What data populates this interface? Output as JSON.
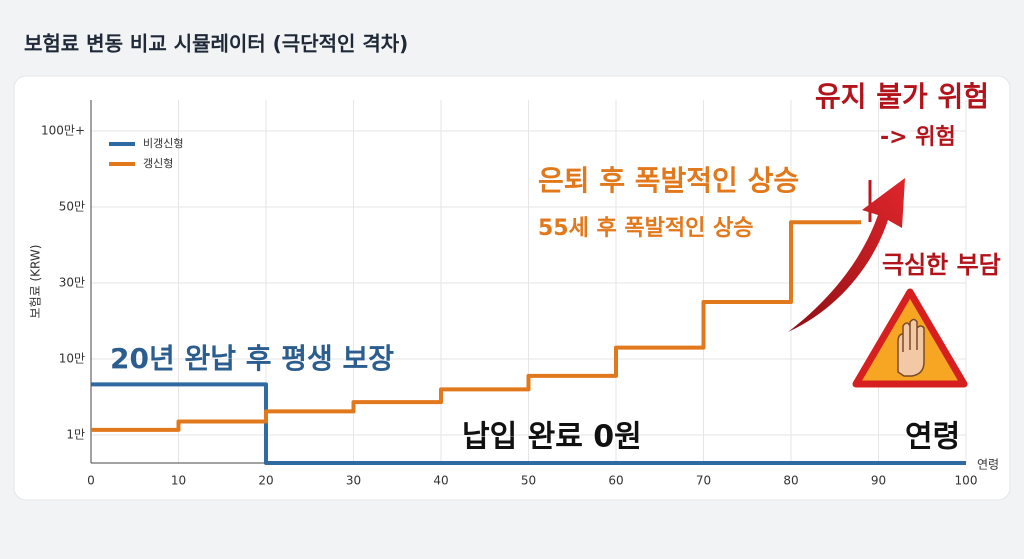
{
  "chart_data": {
    "type": "step-line",
    "title": "보험료 변동 비교 시뮬레이터 (극단적인 격차)",
    "y_label": "보험료 (KRW)",
    "x_label": "연령",
    "xlim": [
      0,
      100
    ],
    "xticks": [
      0,
      10,
      20,
      30,
      40,
      50,
      60,
      70,
      80,
      90,
      100
    ],
    "ylim": [
      0,
      120
    ],
    "yticks": [
      {
        "value": 1,
        "label": "1만"
      },
      {
        "value": 10,
        "label": "10만"
      },
      {
        "value": 30,
        "label": "30만"
      },
      {
        "value": 50,
        "label": "50만"
      },
      {
        "value": 100,
        "label": "100만+"
      }
    ],
    "grid": true,
    "legend": "top-left",
    "series": [
      {
        "name": "비갱신형",
        "color": "#2f6aa3",
        "x": [
          0,
          20,
          100
        ],
        "values": [
          7,
          0,
          0
        ]
      },
      {
        "name": "갱신형",
        "color": "#e2781c",
        "x": [
          0,
          10,
          20,
          30,
          40,
          50,
          60,
          70,
          80,
          88
        ],
        "values": [
          1.6,
          2.6,
          3.8,
          4.9,
          6.4,
          8,
          13,
          25,
          46,
          46
        ]
      }
    ],
    "annotations": [
      {
        "text": "20년 완납 후 평생 보장",
        "color": "#2b5d8f"
      },
      {
        "text": "납입 완료  0원",
        "color": "#111111"
      },
      {
        "text": "연령",
        "color": "#111111"
      },
      {
        "text": "은퇴 후 폭발적인 상승",
        "color": "#e2781c"
      },
      {
        "text": "55세 후 폭발적인 상승",
        "color": "#e2781c"
      },
      {
        "text": "유지 불가 위험",
        "color": "#b3141b"
      },
      {
        "text": "-> 위험",
        "color": "#b3141b"
      },
      {
        "text": "극심한 부담",
        "color": "#b3141b"
      }
    ]
  }
}
